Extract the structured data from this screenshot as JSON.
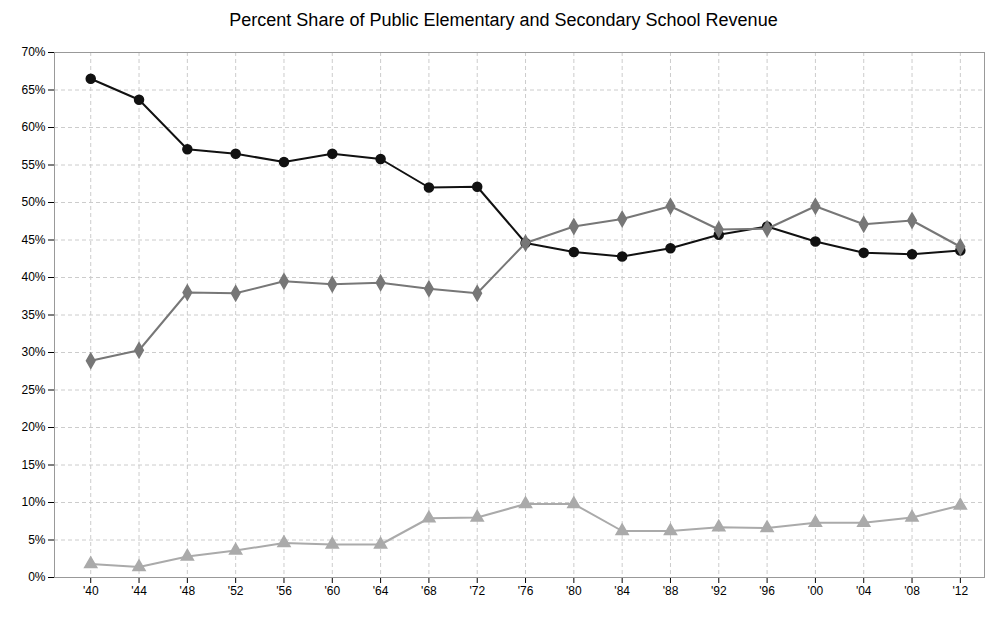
{
  "chart_data": {
    "type": "line",
    "title": "Percent Share of Public Elementary and Secondary School Revenue",
    "x": [
      1940,
      1944,
      1948,
      1952,
      1956,
      1960,
      1964,
      1968,
      1972,
      1976,
      1980,
      1984,
      1988,
      1992,
      1996,
      2000,
      2004,
      2008,
      2012
    ],
    "series": [
      {
        "color": "#111111",
        "marker": "circle",
        "values": [
          66.5,
          63.7,
          57.1,
          56.5,
          55.4,
          56.5,
          55.8,
          52.0,
          52.1,
          44.6,
          43.4,
          42.8,
          43.9,
          45.7,
          46.8,
          44.8,
          43.3,
          43.1,
          43.6
        ]
      },
      {
        "color": "#777777",
        "marker": "diamond",
        "values": [
          28.9,
          30.3,
          38.0,
          37.9,
          39.5,
          39.1,
          39.3,
          38.5,
          37.9,
          44.6,
          46.8,
          47.8,
          49.5,
          46.4,
          46.5,
          49.5,
          47.1,
          47.6,
          44.1
        ]
      },
      {
        "color": "#aaaaaa",
        "marker": "triangle",
        "values": [
          1.8,
          1.4,
          2.8,
          3.6,
          4.6,
          4.4,
          4.4,
          7.9,
          8.0,
          9.8,
          9.8,
          6.2,
          6.2,
          6.7,
          6.6,
          7.3,
          7.3,
          8.0,
          9.6
        ]
      }
    ],
    "xlim": [
      1937,
      2014
    ],
    "xticks": [
      {
        "value": 1940,
        "label": "'40"
      },
      {
        "value": 1944,
        "label": "'44"
      },
      {
        "value": 1948,
        "label": "'48"
      },
      {
        "value": 1952,
        "label": "'52"
      },
      {
        "value": 1956,
        "label": "'56"
      },
      {
        "value": 1960,
        "label": "'60"
      },
      {
        "value": 1964,
        "label": "'64"
      },
      {
        "value": 1968,
        "label": "'68"
      },
      {
        "value": 1972,
        "label": "'72"
      },
      {
        "value": 1976,
        "label": "'76"
      },
      {
        "value": 1980,
        "label": "'80"
      },
      {
        "value": 1984,
        "label": "'84"
      },
      {
        "value": 1988,
        "label": "'88"
      },
      {
        "value": 1992,
        "label": "'92"
      },
      {
        "value": 1996,
        "label": "'96"
      },
      {
        "value": 2000,
        "label": "'00"
      },
      {
        "value": 2004,
        "label": "'04"
      },
      {
        "value": 2008,
        "label": "'08"
      },
      {
        "value": 2012,
        "label": "'12"
      }
    ],
    "ylim": [
      0,
      70
    ],
    "yticks": [
      {
        "value": 0,
        "label": "0%"
      },
      {
        "value": 5,
        "label": "5%"
      },
      {
        "value": 10,
        "label": "10%"
      },
      {
        "value": 15,
        "label": "15%"
      },
      {
        "value": 20,
        "label": "20%"
      },
      {
        "value": 25,
        "label": "25%"
      },
      {
        "value": 30,
        "label": "30%"
      },
      {
        "value": 35,
        "label": "35%"
      },
      {
        "value": 40,
        "label": "40%"
      },
      {
        "value": 45,
        "label": "45%"
      },
      {
        "value": 50,
        "label": "50%"
      },
      {
        "value": 55,
        "label": "55%"
      },
      {
        "value": 60,
        "label": "60%"
      },
      {
        "value": 65,
        "label": "65%"
      },
      {
        "value": 70,
        "label": "70%"
      }
    ],
    "grid": true
  }
}
